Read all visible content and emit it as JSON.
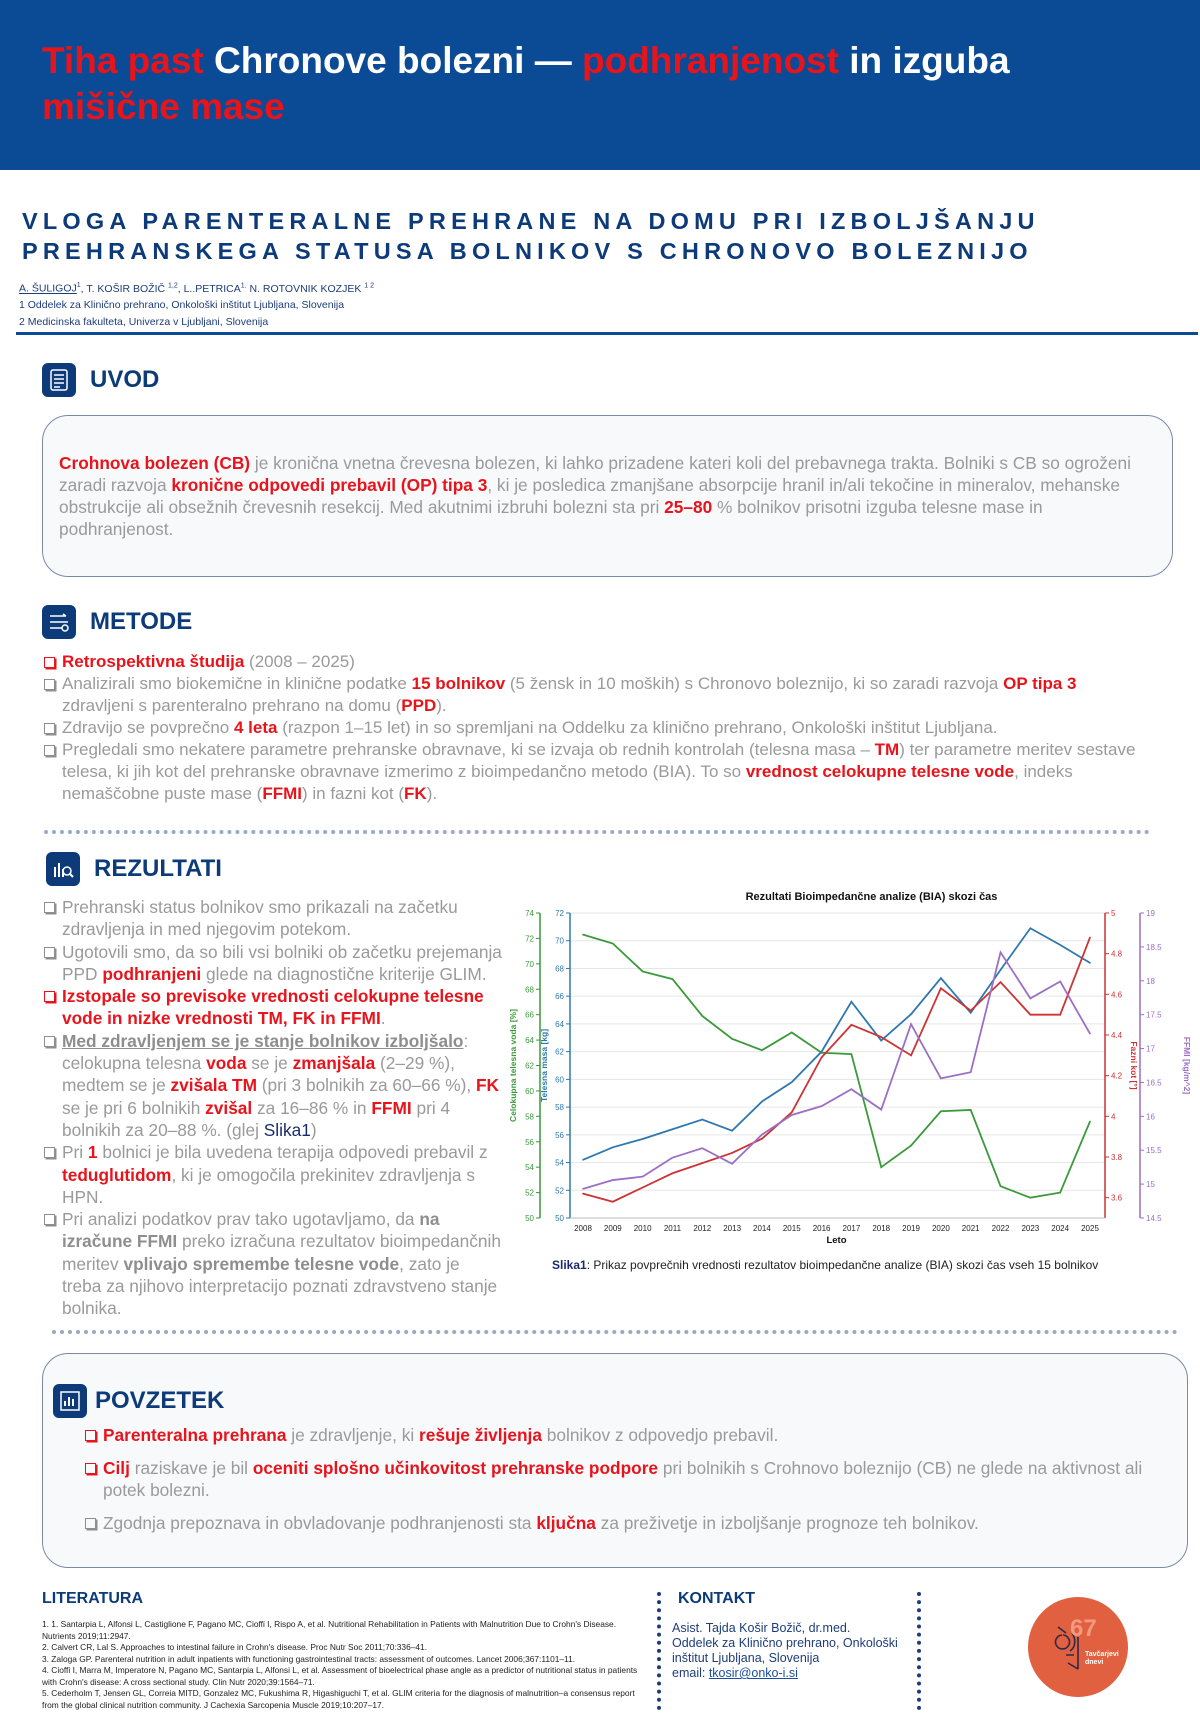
{
  "header": {
    "title": [
      {
        "s": "r",
        "t": "Tiha past"
      },
      {
        "s": "n",
        "t": " Chronove bolezni — "
      },
      {
        "s": "r",
        "t": "podhranjenost"
      },
      {
        "s": "n",
        "t": " in izguba "
      },
      {
        "s": "r",
        "t": "mišične mase"
      }
    ]
  },
  "subtitle": "VLOGA PARENTERALNE PREHRANE NA DOMU PRI IZBOLJŠANJU PREHRANSKEGA STATUSA BOLNIKOV S CHRONOVO BOLEZNIJO",
  "authors": {
    "first": "A. ŠULIGOJ",
    "first_sup": "1",
    "rest": [
      {
        "t": ", T. KOŠIR BOŽIČ ",
        "sup": "1,2"
      },
      {
        "t": ", L..PETRICA",
        "sup": "1."
      },
      {
        "t": " N. ROTOVNIK KOZJEK ",
        "sup": "1 2"
      }
    ],
    "affiliations": [
      "1 Oddelek za Klinično prehrano, Onkološki inštitut Ljubljana, Slovenija",
      "2 Medicinska fakulteta, Univerza v Ljubljani, Slovenija"
    ]
  },
  "uvod": {
    "heading": "UVOD",
    "icon": "document-list-icon",
    "text": [
      {
        "s": "r",
        "t": "Crohnova bolezen (CB)"
      },
      {
        "s": "n",
        "t": " je kronična vnetna črevesna bolezen, ki lahko prizadene kateri koli del prebavnega trakta. Bolniki s CB so ogroženi zaradi razvoja "
      },
      {
        "s": "r",
        "t": "kronične odpovedi prebavil (OP) tipa 3"
      },
      {
        "s": "n",
        "t": ", ki je posledica zmanjšane absorpcije hranil in/ali tekočine in mineralov, mehanske obstrukcije ali obsežnih črevesnih resekcij. Med akutnimi izbruhi bolezni sta pri "
      },
      {
        "s": "r",
        "t": "25–80"
      },
      {
        "s": "n",
        "t": " % bolnikov prisotni izguba telesne mase in podhranjenost."
      }
    ]
  },
  "metode": {
    "heading": "METODE",
    "icon": "workflow-icon",
    "items": [
      {
        "red": true,
        "parts": [
          {
            "s": "r",
            "t": "Retrospektivna študija"
          },
          {
            "s": "n",
            "t": " (2008 – 2025)"
          }
        ]
      },
      {
        "parts": [
          {
            "s": "n",
            "t": "Analizirali smo biokemične in klinične podatke "
          },
          {
            "s": "r",
            "t": "15 bolnikov"
          },
          {
            "s": "n",
            "t": " (5 žensk in 10 moških) s Chronovo boleznijo, ki so zaradi razvoja "
          },
          {
            "s": "r",
            "t": "OP tipa 3"
          },
          {
            "s": "n",
            "t": " zdravljeni s parenteralno prehrano na domu ("
          },
          {
            "s": "r",
            "t": "PPD"
          },
          {
            "s": "n",
            "t": ")."
          }
        ]
      },
      {
        "parts": [
          {
            "s": "n",
            "t": "Zdravijo se povprečno "
          },
          {
            "s": "r",
            "t": "4 leta"
          },
          {
            "s": "n",
            "t": " (razpon 1–15 let) in so spremljani na Oddelku za klinično prehrano, Onkološki inštitut Ljubljana."
          }
        ]
      },
      {
        "parts": [
          {
            "s": "n",
            "t": "Pregledali smo nekatere parametre prehranske obravnave, ki se izvaja ob rednih kontrolah (telesna masa – "
          },
          {
            "s": "r",
            "t": "TM"
          },
          {
            "s": "n",
            "t": ") ter parametre meritev sestave telesa, ki jih kot del prehranske obravnave izmerimo z bioimpedančno metodo (BIA). To so "
          },
          {
            "s": "r",
            "t": "vrednost celokupne telesne vode"
          },
          {
            "s": "n",
            "t": ", indeks nemaščobne puste mase ("
          },
          {
            "s": "r",
            "t": "FFMI"
          },
          {
            "s": "n",
            "t": ") in fazni kot ("
          },
          {
            "s": "r",
            "t": "FK"
          },
          {
            "s": "n",
            "t": ")."
          }
        ]
      }
    ]
  },
  "rezultati": {
    "heading": "REZULTATI",
    "icon": "analysis-icon",
    "items": [
      {
        "parts": [
          {
            "s": "n",
            "t": "Prehranski status bolnikov smo prikazali na začetku zdravljenja in med njegovim potekom."
          }
        ]
      },
      {
        "parts": [
          {
            "s": "n",
            "t": "Ugotovili smo, da so bili vsi bolniki ob začetku prejemanja PPD "
          },
          {
            "s": "r",
            "t": "podhranjeni"
          },
          {
            "s": "n",
            "t": " glede na diagnostične kriterije GLIM."
          }
        ]
      },
      {
        "red": true,
        "parts": [
          {
            "s": "r",
            "t": "Izstopale so previsoke vrednosti celokupne telesne vode in nizke vrednosti TM, FK in FFMI"
          },
          {
            "s": "n",
            "t": "."
          }
        ]
      },
      {
        "parts": [
          {
            "s": "u",
            "t": "Med zdravljenjem se je stanje bolnikov izboljšalo"
          },
          {
            "s": "n",
            "t": ": celokupna telesna "
          },
          {
            "s": "r",
            "t": "voda"
          },
          {
            "s": "n",
            "t": " se je "
          },
          {
            "s": "r",
            "t": "zmanjšala"
          },
          {
            "s": "n",
            "t": " (2–29 %), medtem se je "
          },
          {
            "s": "r",
            "t": "zvišala TM"
          },
          {
            "s": "n",
            "t": " (pri 3 bolnikih za 60–66 %), "
          },
          {
            "s": "r",
            "t": "FK"
          },
          {
            "s": "n",
            "t": " se je pri 6 bolnikih "
          },
          {
            "s": "r",
            "t": "zvišal"
          },
          {
            "s": "n",
            "t": " za 16–86 % in "
          },
          {
            "s": "r",
            "t": "FFMI"
          },
          {
            "s": "n",
            "t": " pri 4 bolnikih za 20–88 %. (glej "
          },
          {
            "s": "l",
            "t": "Slika1"
          },
          {
            "s": "n",
            "t": ")"
          }
        ]
      },
      {
        "parts": [
          {
            "s": "n",
            "t": "Pri "
          },
          {
            "s": "r",
            "t": "1"
          },
          {
            "s": "n",
            "t": " bolnici je bila uvedena terapija odpovedi prebavil z "
          },
          {
            "s": "r",
            "t": "teduglutidom"
          },
          {
            "s": "n",
            "t": ", ki je omogočila prekinitev zdravljenja s HPN."
          }
        ]
      },
      {
        "parts": [
          {
            "s": "n",
            "t": "Pri analizi podatkov prav tako ugotavljamo, da "
          },
          {
            "s": "b",
            "t": "na izračune FFMI"
          },
          {
            "s": "n",
            "t": " preko izračuna rezultatov bioimpedančnih meritev "
          },
          {
            "s": "b",
            "t": "vplivajo spremembe telesne vode"
          },
          {
            "s": "n",
            "t": ", zato je treba za njihovo interpretacijo poznati zdravstveno stanje bolnika."
          }
        ]
      }
    ],
    "caption_label": "Slika1",
    "caption_text": ": Prikaz povprečnih vrednosti rezultatov bioimpedančne analize (BIA) skozi čas vseh 15 bolnikov"
  },
  "chart_data": {
    "type": "line",
    "title": "Rezultati Bioimpedančne analize (BIA) skozi čas",
    "xlabel": "Leto",
    "x": [
      2008,
      2009,
      2010,
      2011,
      2012,
      2013,
      2014,
      2015,
      2016,
      2017,
      2018,
      2019,
      2020,
      2021,
      2022,
      2023,
      2024,
      2025
    ],
    "grid": true,
    "series": [
      {
        "axis_label": "Celokupna telesna voda [%]",
        "color": "#3a9a3a",
        "ylim": [
          50,
          74
        ],
        "ticks": [
          50,
          52,
          54,
          56,
          58,
          60,
          62,
          64,
          66,
          68,
          70,
          72,
          74
        ],
        "values": [
          72.3,
          71.6,
          69.4,
          68.8,
          65.9,
          64.1,
          63.2,
          64.6,
          63.0,
          62.9,
          54.0,
          55.7,
          58.4,
          58.5,
          52.5,
          51.6,
          52.0,
          57.6
        ]
      },
      {
        "axis_label": "Telesna masa [kg]",
        "color": "#2e78b0",
        "ylim": [
          50,
          72
        ],
        "ticks": [
          50,
          52,
          54,
          56,
          58,
          60,
          62,
          64,
          66,
          68,
          70,
          72
        ],
        "values": [
          54.2,
          55.1,
          55.7,
          56.4,
          57.1,
          56.3,
          58.4,
          59.8,
          62.0,
          65.6,
          62.8,
          64.7,
          67.3,
          64.8,
          67.9,
          70.9,
          69.7,
          68.4
        ]
      },
      {
        "axis_label": "Fazni kot [°]",
        "color": "#cc3333",
        "ylim": [
          3.5,
          5.0
        ],
        "ticks": [
          3.6,
          3.8,
          4.0,
          4.2,
          4.4,
          4.6,
          4.8,
          5.0
        ],
        "values": [
          3.62,
          3.58,
          3.65,
          3.72,
          3.77,
          3.82,
          3.89,
          4.02,
          4.29,
          4.45,
          4.39,
          4.3,
          4.63,
          4.52,
          4.66,
          4.5,
          4.5,
          4.88
        ]
      },
      {
        "axis_label": "FFMI [kg/m^2]",
        "color": "#9b6fc4",
        "ylim": [
          14.5,
          19.0
        ],
        "ticks": [
          14.5,
          15.0,
          15.5,
          16.0,
          16.5,
          17.0,
          17.5,
          18.0,
          18.5,
          19.0
        ],
        "values": [
          14.93,
          15.06,
          15.11,
          15.39,
          15.53,
          15.3,
          15.73,
          16.02,
          16.15,
          16.4,
          16.1,
          17.36,
          16.56,
          16.65,
          18.42,
          17.74,
          17.99,
          17.22
        ]
      }
    ]
  },
  "povzetek": {
    "heading": "POVZETEK",
    "icon": "summary-chart-icon",
    "items": [
      {
        "red": true,
        "parts": [
          {
            "s": "r",
            "t": "Parenteralna prehrana"
          },
          {
            "s": "n",
            "t": " je zdravljenje, ki "
          },
          {
            "s": "r",
            "t": "rešuje življenja"
          },
          {
            "s": "n",
            "t": " bolnikov z odpovedjo prebavil."
          }
        ]
      },
      {
        "red": true,
        "parts": [
          {
            "s": "r",
            "t": "Cilj"
          },
          {
            "s": "n",
            "t": " raziskave je bil "
          },
          {
            "s": "r",
            "t": "oceniti splošno učinkovitost prehranske podpore"
          },
          {
            "s": "n",
            "t": " pri bolnikih s Crohnovo boleznijo (CB) ne glede na aktivnost ali potek bolezni."
          }
        ]
      },
      {
        "parts": [
          {
            "s": "n",
            "t": "Zgodnja prepoznava in obvladovanje podhranjenosti sta "
          },
          {
            "s": "r",
            "t": "ključna"
          },
          {
            "s": "n",
            "t": " za preživetje in izboljšanje prognoze teh bolnikov."
          }
        ]
      }
    ]
  },
  "literatura": {
    "heading": "LITERATURA",
    "refs": [
      "1. 1. Santarpia L, Alfonsi L, Castiglione F, Pagano MC, Cioffi I, Rispo A, et al. Nutritional Rehabilitation in Patients with Malnutrition Due to Crohn's Disease. Nutrients 2019;11:2947.",
      "2. Calvert CR, Lal S. Approaches to intestinal failure in Crohn's disease. Proc Nutr Soc 2011;70:336–41.",
      "3. Zaloga GP. Parenteral nutrition in adult inpatients with functioning gastrointestinal tracts: assessment of outcomes. Lancet 2006;367:1101–11.",
      "4. Cioffi I, Marra M, Imperatore N, Pagano MC, Santarpia L, Alfonsi L, et al. Assessment of bioelectrical phase angle as a predictor of nutritional status in patients with Crohn's disease: A cross sectional study. Clin Nutr 2020;39:1564–71.",
      "5. Cederholm T, Jensen GL, Correia MITD, Gonzalez MC, Fukushima R, Higashiguchi T, et al. GLIM criteria for the diagnosis of malnutrition–a consensus report from the global clinical nutrition community. J Cachexia Sarcopenia Muscle 2019;10:207–17."
    ]
  },
  "kontakt": {
    "heading": "KONTAKT",
    "lines": [
      "Asist. Tajda Košir Božič, dr.med.",
      "Oddelek za Klinično prehrano, Onkološki",
      "inštitut Ljubljana, Slovenija"
    ],
    "email_label": "email: ",
    "email": "tkosir@onko-i.si"
  },
  "logo": {
    "number": "67",
    "text": "Tavčarjevi dnevi",
    "color": "#e0603f"
  },
  "colors": {
    "header": "#0b4a94",
    "accent": "#e8141c",
    "heading": "#0d3b7a"
  }
}
